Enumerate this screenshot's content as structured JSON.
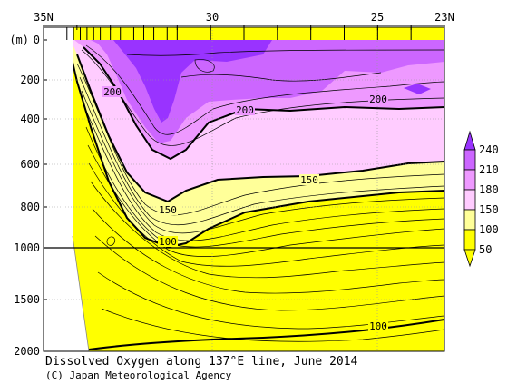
{
  "chart_data": {
    "type": "contour",
    "title": "Dissolved Oxygen along 137°E line, June 2014",
    "credit": "(C) Japan Meteorological Agency",
    "x_axis": {
      "unit": "latitude",
      "range": [
        35,
        23
      ],
      "tick_labels": [
        {
          "lat": 35,
          "label": "35N"
        },
        {
          "lat": 30,
          "label": "30"
        },
        {
          "lat": 25,
          "label": "25"
        },
        {
          "lat": 23,
          "label": "23N"
        }
      ],
      "station_latitudes": [
        34.3,
        34.1,
        33.9,
        33.7,
        33.5,
        33.3,
        33.0,
        32.7,
        32.3,
        32.0,
        31.7,
        31.3,
        31.0,
        30.0,
        29.0,
        28.0,
        27.0,
        26.0,
        25.0,
        24.0,
        23.0
      ]
    },
    "y_axis": {
      "unit_label": "(m)",
      "range_upper": [
        0,
        1000
      ],
      "range_lower": [
        1000,
        2000
      ],
      "tick_labels_upper": [
        "0",
        "200",
        "400",
        "600",
        "800",
        "1000"
      ],
      "tick_labels_lower": [
        "1500",
        "2000"
      ]
    },
    "colorbar": {
      "levels": [
        "50",
        "100",
        "150",
        "180",
        "210",
        "240"
      ],
      "colors": [
        "#ffff00",
        "#ffff99",
        "#ffccff",
        "#ee99ff",
        "#cc66ff",
        "#9933ff"
      ]
    },
    "contour_labels": [
      {
        "text": "200",
        "lat": 33.7,
        "depth": 150
      },
      {
        "text": "200",
        "lat": 30.6,
        "depth": 290
      },
      {
        "text": "200",
        "lat": 25.3,
        "depth": 245
      },
      {
        "text": "150",
        "lat": 27.4,
        "depth": 570
      },
      {
        "text": "150",
        "lat": 31.7,
        "depth": 680
      },
      {
        "text": "100",
        "lat": 31.8,
        "depth": 900
      },
      {
        "text": "100",
        "lat": 25.2,
        "depth": 1720
      }
    ]
  }
}
